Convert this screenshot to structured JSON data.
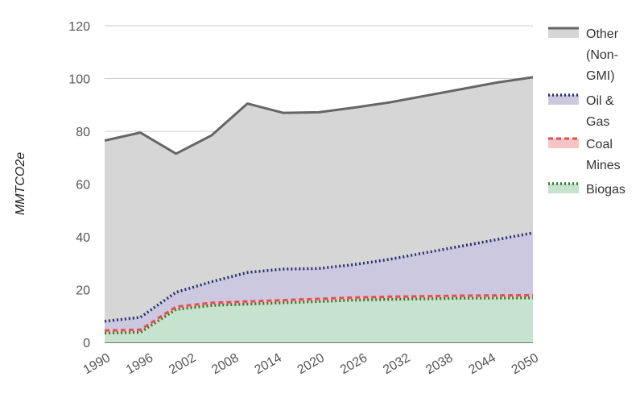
{
  "chart_data": {
    "type": "area",
    "stacked": true,
    "title": "",
    "xlabel": "",
    "ylabel": "MMTCO2e",
    "ylim": [
      0,
      120
    ],
    "yticks": [
      0,
      20,
      40,
      60,
      80,
      100,
      120
    ],
    "xticks": [
      1990,
      1996,
      2002,
      2008,
      2014,
      2020,
      2026,
      2032,
      2038,
      2044,
      2050
    ],
    "xlim": [
      1990,
      2050
    ],
    "grid": "horizontal",
    "legend_position": "right",
    "x": [
      1990,
      1995,
      2000,
      2005,
      2010,
      2015,
      2020,
      2025,
      2030,
      2035,
      2040,
      2045,
      2050
    ],
    "series": [
      {
        "name": "Biogas",
        "color": "#2e7d32",
        "fill": "#c7e2cf",
        "line_style": "dotted",
        "cumulative": [
          3.5,
          3.8,
          12.5,
          14.0,
          14.5,
          15.0,
          15.5,
          16.0,
          16.3,
          16.5,
          16.7,
          16.8,
          16.9
        ]
      },
      {
        "name": "Coal Mines",
        "color": "#e05050",
        "fill": "#f6c4c4",
        "line_style": "dashed",
        "cumulative": [
          4.5,
          4.8,
          13.5,
          15.0,
          15.5,
          16.0,
          16.5,
          17.0,
          17.3,
          17.5,
          17.7,
          17.8,
          17.9
        ]
      },
      {
        "name": "Oil & Gas",
        "color": "#2a2e6e",
        "fill": "#ccc8e0",
        "line_style": "dotted",
        "cumulative": [
          8.0,
          9.5,
          19.0,
          23.0,
          26.5,
          27.8,
          28.0,
          29.5,
          31.5,
          34.0,
          36.5,
          39.0,
          41.5
        ]
      },
      {
        "name": "Other (Non-GMI)",
        "color": "#666666",
        "fill": "#d6d6d6",
        "line_style": "solid",
        "cumulative": [
          76.5,
          79.5,
          71.5,
          78.5,
          90.5,
          87.0,
          87.2,
          89.0,
          91.0,
          93.5,
          96.0,
          98.5,
          100.5
        ]
      }
    ],
    "legend": [
      {
        "lines": [
          "Other",
          "(Non-",
          "GMI)"
        ]
      },
      {
        "lines": [
          "Oil &",
          "Gas"
        ]
      },
      {
        "lines": [
          "Coal",
          "Mines"
        ]
      },
      {
        "lines": [
          "Biogas"
        ]
      }
    ]
  }
}
